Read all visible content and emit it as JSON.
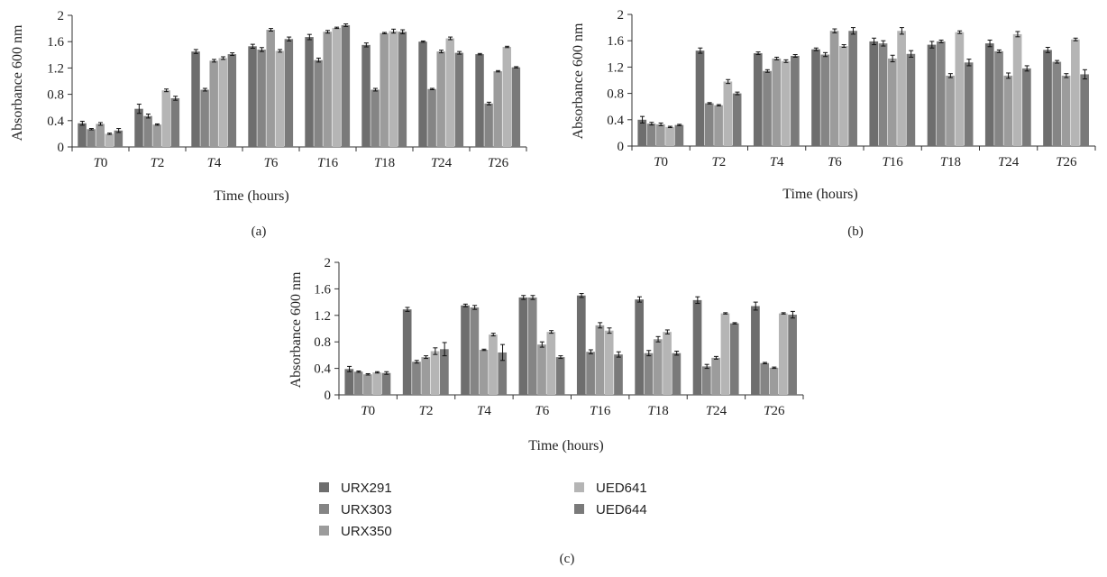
{
  "series_colors": [
    "#6e6e6e",
    "#858585",
    "#9c9c9c",
    "#b5b5b5",
    "#7a7a7a"
  ],
  "legend": {
    "labels": [
      "URX291",
      "URX303",
      "URX350",
      "UED641",
      "UED644"
    ]
  },
  "chart_data": [
    {
      "panel_label": "(a)",
      "type": "bar",
      "xlabel": "Time (hours)",
      "ylabel": "Absorbance 600 nm",
      "ylim": [
        0,
        2
      ],
      "yticks": [
        "0",
        "0.4",
        "0.8",
        "1.2",
        "1.6",
        "2"
      ],
      "categories": [
        {
          "prefix": "T",
          "number": "0"
        },
        {
          "prefix": "T",
          "number": "2"
        },
        {
          "prefix": "T",
          "number": "4"
        },
        {
          "prefix": "T",
          "number": "6"
        },
        {
          "prefix": "T",
          "number": "16"
        },
        {
          "prefix": "T",
          "number": "18"
        },
        {
          "prefix": "T",
          "number": "24"
        },
        {
          "prefix": "T",
          "number": "26"
        }
      ],
      "series": [
        {
          "name": "URX291",
          "values": [
            0.36,
            0.58,
            1.45,
            1.53,
            1.67,
            1.55,
            1.6,
            1.41
          ],
          "errors": [
            0.03,
            0.07,
            0.03,
            0.03,
            0.04,
            0.03,
            0.01,
            0.01
          ]
        },
        {
          "name": "URX303",
          "values": [
            0.27,
            0.47,
            0.87,
            1.48,
            1.32,
            0.87,
            0.88,
            0.66
          ],
          "errors": [
            0.01,
            0.03,
            0.02,
            0.03,
            0.03,
            0.02,
            0.01,
            0.02
          ]
        },
        {
          "name": "URX350",
          "values": [
            0.35,
            0.34,
            1.31,
            1.78,
            1.75,
            1.73,
            1.45,
            1.15
          ],
          "errors": [
            0.02,
            0.01,
            0.02,
            0.02,
            0.02,
            0.01,
            0.02,
            0.01
          ]
        },
        {
          "name": "UED641",
          "values": [
            0.2,
            0.86,
            1.35,
            1.46,
            1.81,
            1.76,
            1.65,
            1.52
          ],
          "errors": [
            0.01,
            0.02,
            0.02,
            0.02,
            0.01,
            0.03,
            0.02,
            0.01
          ]
        },
        {
          "name": "UED644",
          "values": [
            0.25,
            0.74,
            1.41,
            1.64,
            1.85,
            1.75,
            1.43,
            1.21
          ],
          "errors": [
            0.03,
            0.03,
            0.02,
            0.03,
            0.02,
            0.03,
            0.02,
            0.01
          ]
        }
      ]
    },
    {
      "panel_label": "(b)",
      "type": "bar",
      "xlabel": "Time (hours)",
      "ylabel": "Absorbance 600 nm",
      "ylim": [
        0,
        2
      ],
      "yticks": [
        "0",
        "0.4",
        "0.8",
        "1.2",
        "1.6",
        "2"
      ],
      "categories": [
        {
          "prefix": "T",
          "number": "0"
        },
        {
          "prefix": "T",
          "number": "2"
        },
        {
          "prefix": "T",
          "number": "4"
        },
        {
          "prefix": "T",
          "number": "6"
        },
        {
          "prefix": "T",
          "number": "16"
        },
        {
          "prefix": "T",
          "number": "18"
        },
        {
          "prefix": "T",
          "number": "24"
        },
        {
          "prefix": "T",
          "number": "26"
        }
      ],
      "series": [
        {
          "name": "URX291",
          "values": [
            0.4,
            1.45,
            1.41,
            1.47,
            1.59,
            1.54,
            1.56,
            1.46
          ],
          "errors": [
            0.05,
            0.04,
            0.02,
            0.02,
            0.05,
            0.05,
            0.05,
            0.04
          ]
        },
        {
          "name": "URX303",
          "values": [
            0.34,
            0.65,
            1.14,
            1.39,
            1.56,
            1.59,
            1.44,
            1.28
          ],
          "errors": [
            0.02,
            0.01,
            0.02,
            0.03,
            0.04,
            0.02,
            0.02,
            0.02
          ]
        },
        {
          "name": "URX350",
          "values": [
            0.33,
            0.62,
            1.33,
            1.75,
            1.33,
            1.07,
            1.07,
            1.07
          ],
          "errors": [
            0.02,
            0.01,
            0.02,
            0.03,
            0.05,
            0.03,
            0.04,
            0.03
          ]
        },
        {
          "name": "UED641",
          "values": [
            0.29,
            0.98,
            1.29,
            1.52,
            1.75,
            1.73,
            1.7,
            1.62
          ],
          "errors": [
            0.01,
            0.03,
            0.02,
            0.02,
            0.05,
            0.02,
            0.04,
            0.02
          ]
        },
        {
          "name": "UED644",
          "values": [
            0.32,
            0.8,
            1.37,
            1.75,
            1.4,
            1.27,
            1.18,
            1.09
          ],
          "errors": [
            0.01,
            0.02,
            0.02,
            0.05,
            0.05,
            0.05,
            0.04,
            0.07
          ]
        }
      ]
    },
    {
      "panel_label": "(c)",
      "type": "bar",
      "xlabel": "Time (hours)",
      "ylabel": "Absorbance 600 nm",
      "ylim": [
        0,
        2
      ],
      "yticks": [
        "0",
        "0.4",
        "0.8",
        "1.2",
        "1.6",
        "2"
      ],
      "categories": [
        {
          "prefix": "T",
          "number": "0"
        },
        {
          "prefix": "T",
          "number": "2"
        },
        {
          "prefix": "T",
          "number": "4"
        },
        {
          "prefix": "T",
          "number": "6"
        },
        {
          "prefix": "T",
          "number": "16"
        },
        {
          "prefix": "T",
          "number": "18"
        },
        {
          "prefix": "T",
          "number": "24"
        },
        {
          "prefix": "T",
          "number": "26"
        }
      ],
      "series": [
        {
          "name": "URX291",
          "values": [
            0.39,
            1.29,
            1.35,
            1.47,
            1.5,
            1.44,
            1.43,
            1.34
          ],
          "errors": [
            0.04,
            0.03,
            0.02,
            0.03,
            0.03,
            0.04,
            0.05,
            0.06
          ]
        },
        {
          "name": "URX303",
          "values": [
            0.35,
            0.5,
            1.32,
            1.47,
            0.65,
            0.63,
            0.43,
            0.48
          ],
          "errors": [
            0.01,
            0.02,
            0.03,
            0.03,
            0.03,
            0.04,
            0.03,
            0.01
          ]
        },
        {
          "name": "URX350",
          "values": [
            0.31,
            0.57,
            0.68,
            0.76,
            1.05,
            0.84,
            0.56,
            0.41
          ],
          "errors": [
            0.01,
            0.02,
            0.01,
            0.04,
            0.04,
            0.04,
            0.02,
            0.01
          ]
        },
        {
          "name": "UED641",
          "values": [
            0.34,
            0.66,
            0.91,
            0.95,
            0.97,
            0.95,
            1.23,
            1.23
          ],
          "errors": [
            0.01,
            0.05,
            0.02,
            0.02,
            0.04,
            0.03,
            0.01,
            0.01
          ]
        },
        {
          "name": "UED644",
          "values": [
            0.33,
            0.69,
            0.64,
            0.57,
            0.61,
            0.63,
            1.08,
            1.21
          ],
          "errors": [
            0.02,
            0.1,
            0.12,
            0.02,
            0.04,
            0.03,
            0.01,
            0.05
          ]
        }
      ]
    }
  ]
}
